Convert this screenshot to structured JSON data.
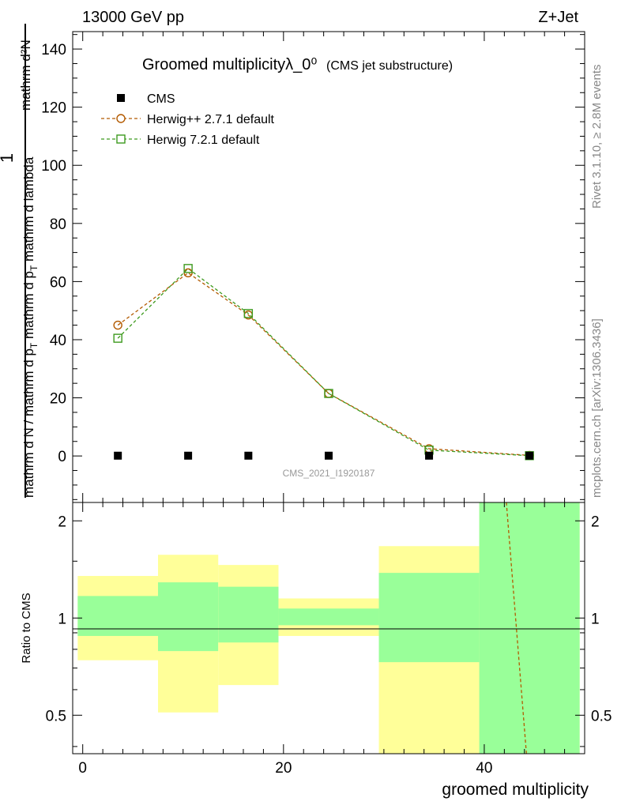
{
  "header": {
    "left": "13000 GeV pp",
    "right": "Z+Jet"
  },
  "side_labels": {
    "rivet": "Rivet 3.1.10, ≥ 2.8M events",
    "mcplots": "mcplots.cern.ch [arXiv:1306.3436]"
  },
  "colors": {
    "data": "#000000",
    "herwigpp": "#b35a00",
    "herwig7": "#3d9a1e",
    "band_inner": "#99ff99",
    "band_outer": "#ffff99"
  },
  "chart_data": [
    {
      "type": "scatter",
      "title": "Groomed multiplicityλ_0⁰",
      "subtitle": "(CMS jet substructure)",
      "watermark": "CMS_2021_I1920187",
      "ylabel_num": "1",
      "ylabel_num_right": "mathrm d²N",
      "ylabel_den": "mathrm d N / mathrm d p",
      "ylabel_den_sub": "T",
      "ylabel_den_rest": " mathrm d p",
      "ylabel_den_sub2": "T",
      "ylabel_den_rest2": " mathrm d lambda",
      "xlim": [
        -1,
        50
      ],
      "ylim": [
        -16,
        146
      ],
      "yticks": [
        0,
        20,
        40,
        60,
        80,
        100,
        120,
        140
      ],
      "legend_position": "top-left",
      "series": [
        {
          "name": "CMS",
          "marker": "filled-square",
          "x": [
            3.5,
            10.5,
            16.5,
            24.5,
            34.5,
            44.5
          ],
          "y": [
            0.1,
            0.1,
            0.1,
            0.1,
            0.1,
            0.1
          ]
        },
        {
          "name": "Herwig++ 2.7.1 default",
          "marker": "open-circle",
          "x": [
            3.5,
            10.5,
            16.5,
            24.5,
            34.5,
            44.5
          ],
          "y": [
            45,
            63,
            48.5,
            21.5,
            2.5,
            0.2
          ]
        },
        {
          "name": "Herwig 7.2.1 default",
          "marker": "open-square",
          "x": [
            3.5,
            10.5,
            16.5,
            24.5,
            34.5,
            44.5
          ],
          "y": [
            40.5,
            64.5,
            49,
            21.5,
            2,
            0.1
          ]
        }
      ]
    },
    {
      "type": "area",
      "ylabel": "Ratio to CMS",
      "xlabel": "groomed multiplicity",
      "xlim": [
        -1,
        50
      ],
      "xticks": [
        0,
        20,
        40
      ],
      "ylim": [
        0.38,
        2.28
      ],
      "yticks": [
        0.5,
        1,
        2
      ],
      "y_scale": "log",
      "bins": [
        {
          "x0": -0.5,
          "x1": 7.5,
          "inner": [
            0.88,
            1.17
          ],
          "outer": [
            0.74,
            1.35
          ]
        },
        {
          "x0": 7.5,
          "x1": 13.5,
          "inner": [
            0.79,
            1.29
          ],
          "outer": [
            0.51,
            1.57
          ]
        },
        {
          "x0": 13.5,
          "x1": 19.5,
          "inner": [
            0.84,
            1.25
          ],
          "outer": [
            0.62,
            1.46
          ]
        },
        {
          "x0": 19.5,
          "x1": 29.5,
          "inner": [
            0.95,
            1.07
          ],
          "outer": [
            0.88,
            1.15
          ]
        },
        {
          "x0": 29.5,
          "x1": 39.5,
          "inner": [
            0.73,
            1.38
          ],
          "outer": [
            0.38,
            1.67
          ]
        },
        {
          "x0": 39.5,
          "x1": 49.5,
          "inner": [
            0.38,
            2.28
          ],
          "outer": [
            0.38,
            2.28
          ]
        }
      ],
      "ratio_line": {
        "x": [
          42.2,
          44.2
        ],
        "y": [
          2.28,
          0.38
        ]
      }
    }
  ]
}
